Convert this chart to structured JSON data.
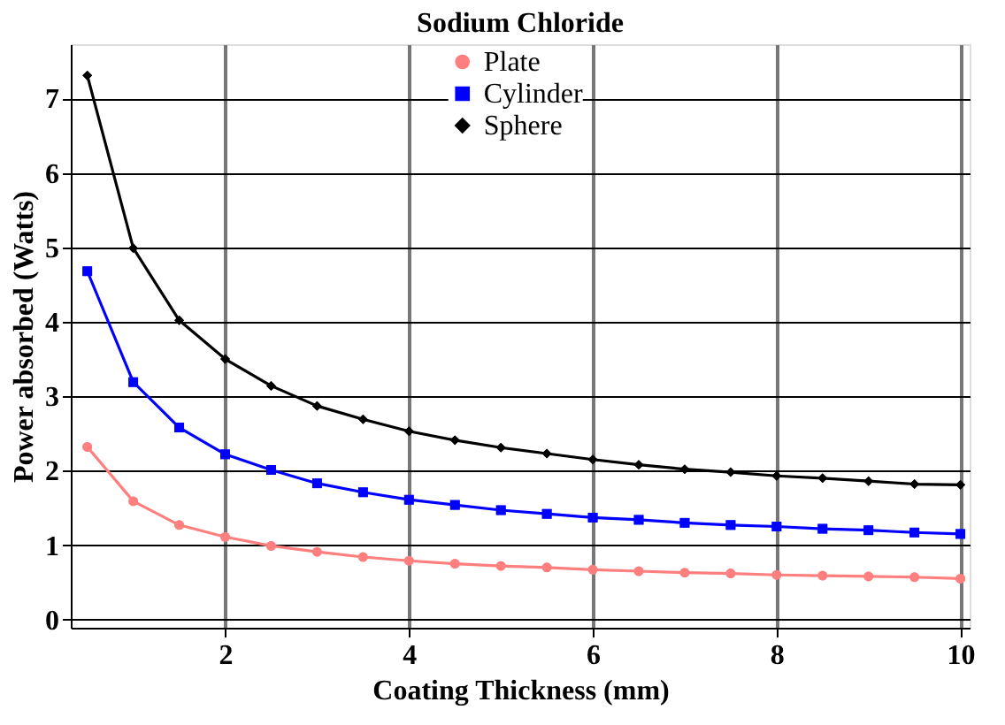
{
  "chart_data": {
    "type": "line",
    "title": "Sodium Chloride",
    "xlabel": "Coating Thickness (mm)",
    "ylabel": "Power absorbed (Watts)",
    "x": [
      0.5,
      1,
      1.5,
      2,
      2.5,
      3,
      3.5,
      4,
      4.5,
      5,
      5.5,
      6,
      6.5,
      7,
      7.5,
      8,
      8.5,
      9,
      9.5,
      10
    ],
    "series": [
      {
        "name": "Plate",
        "color": "#ff7f7f",
        "marker": "circle",
        "values": [
          2.32,
          1.59,
          1.27,
          1.11,
          0.99,
          0.91,
          0.84,
          0.79,
          0.75,
          0.72,
          0.7,
          0.67,
          0.65,
          0.63,
          0.62,
          0.6,
          0.59,
          0.58,
          0.57,
          0.55
        ]
      },
      {
        "name": "Cylinder",
        "color": "#0000ff",
        "marker": "square",
        "values": [
          4.68,
          3.19,
          2.58,
          2.22,
          2.01,
          1.83,
          1.71,
          1.61,
          1.54,
          1.47,
          1.42,
          1.37,
          1.34,
          1.3,
          1.27,
          1.25,
          1.22,
          1.2,
          1.17,
          1.15
        ]
      },
      {
        "name": "Sphere",
        "color": "#000000",
        "marker": "diamond",
        "values": [
          7.31,
          4.99,
          4.02,
          3.5,
          3.14,
          2.87,
          2.69,
          2.53,
          2.41,
          2.31,
          2.23,
          2.15,
          2.08,
          2.02,
          1.98,
          1.93,
          1.9,
          1.86,
          1.82,
          1.81
        ]
      }
    ],
    "xlim": [
      0.32,
      10.1
    ],
    "xticks": [
      2,
      4,
      6,
      8,
      10
    ],
    "ylim": [
      -0.11,
      7.73
    ],
    "yticks": [
      0,
      1,
      2,
      3,
      4,
      5,
      6,
      7
    ],
    "grid": true,
    "legend": "top",
    "line_style": "solid"
  }
}
